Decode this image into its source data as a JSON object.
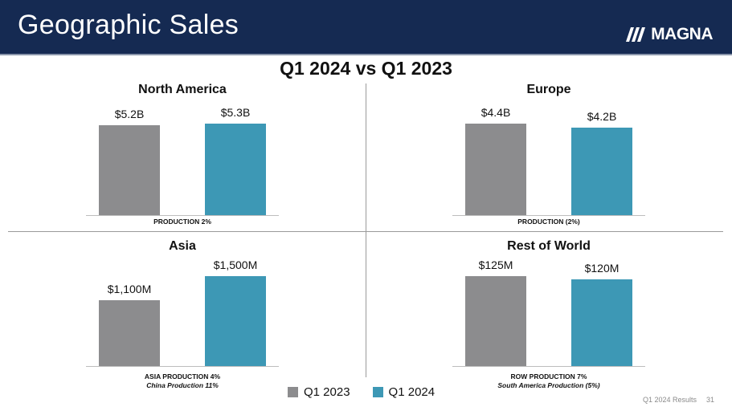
{
  "header": {
    "title": "Geographic Sales",
    "brand": "MAGNA"
  },
  "subtitle": "Q1 2024 vs Q1 2023",
  "chart_data": [
    {
      "type": "bar",
      "title": "North America",
      "categories": [
        "Q1 2023",
        "Q1 2024"
      ],
      "values": [
        5.2,
        5.3
      ],
      "labels": [
        "$5.2B",
        "$5.3B"
      ],
      "unit": "$B",
      "note": "PRODUCTION 2%",
      "note2": ""
    },
    {
      "type": "bar",
      "title": "Europe",
      "categories": [
        "Q1 2023",
        "Q1 2024"
      ],
      "values": [
        4.4,
        4.2
      ],
      "labels": [
        "$4.4B",
        "$4.2B"
      ],
      "unit": "$B",
      "note": "PRODUCTION (2%)",
      "note2": ""
    },
    {
      "type": "bar",
      "title": "Asia",
      "categories": [
        "Q1 2023",
        "Q1 2024"
      ],
      "values": [
        1100,
        1500
      ],
      "labels": [
        "$1,100M",
        "$1,500M"
      ],
      "unit": "$M",
      "note": "ASIA PRODUCTION 4%",
      "note2": "China Production 11%"
    },
    {
      "type": "bar",
      "title": "Rest of World",
      "categories": [
        "Q1 2023",
        "Q1 2024"
      ],
      "values": [
        125,
        120
      ],
      "labels": [
        "$125M",
        "$120M"
      ],
      "unit": "$M",
      "note": "ROW PRODUCTION 7%",
      "note2": "South America Production (5%)"
    }
  ],
  "legend": [
    {
      "label": "Q1 2023",
      "color": "#8c8c8e"
    },
    {
      "label": "Q1 2024",
      "color": "#3d98b5"
    }
  ],
  "footer": {
    "text": "Q1 2024 Results",
    "page": "31"
  }
}
